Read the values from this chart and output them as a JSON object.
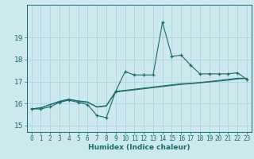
{
  "xlabel": "Humidex (Indice chaleur)",
  "bg_color": "#cce9ee",
  "grid_color": "#aacfd8",
  "line_color": "#1a6b6b",
  "x_values": [
    0,
    1,
    2,
    3,
    4,
    5,
    6,
    7,
    8,
    9,
    10,
    11,
    12,
    13,
    14,
    15,
    16,
    17,
    18,
    19,
    20,
    21,
    22,
    23
  ],
  "series1": [
    15.75,
    15.75,
    15.85,
    16.05,
    16.15,
    16.05,
    15.95,
    15.45,
    15.35,
    16.55,
    17.45,
    17.3,
    17.3,
    17.3,
    19.7,
    18.15,
    18.2,
    17.75,
    17.35,
    17.35,
    17.35,
    17.35,
    17.4,
    17.1
  ],
  "series2": [
    15.75,
    15.8,
    15.95,
    16.1,
    16.2,
    16.1,
    16.05,
    15.85,
    15.9,
    16.55,
    16.6,
    16.65,
    16.7,
    16.75,
    16.8,
    16.85,
    16.9,
    16.92,
    16.96,
    17.0,
    17.05,
    17.1,
    17.15,
    17.15
  ],
  "series3": [
    15.75,
    15.8,
    15.95,
    16.08,
    16.18,
    16.12,
    16.07,
    15.83,
    15.88,
    16.52,
    16.57,
    16.62,
    16.67,
    16.72,
    16.77,
    16.82,
    16.87,
    16.9,
    16.94,
    16.98,
    17.02,
    17.06,
    17.12,
    17.14
  ],
  "ylim": [
    14.7,
    20.5
  ],
  "yticks": [
    15,
    16,
    17,
    18,
    19
  ],
  "xticks": [
    0,
    1,
    2,
    3,
    4,
    5,
    6,
    7,
    8,
    9,
    10,
    11,
    12,
    13,
    14,
    15,
    16,
    17,
    18,
    19,
    20,
    21,
    22,
    23
  ]
}
